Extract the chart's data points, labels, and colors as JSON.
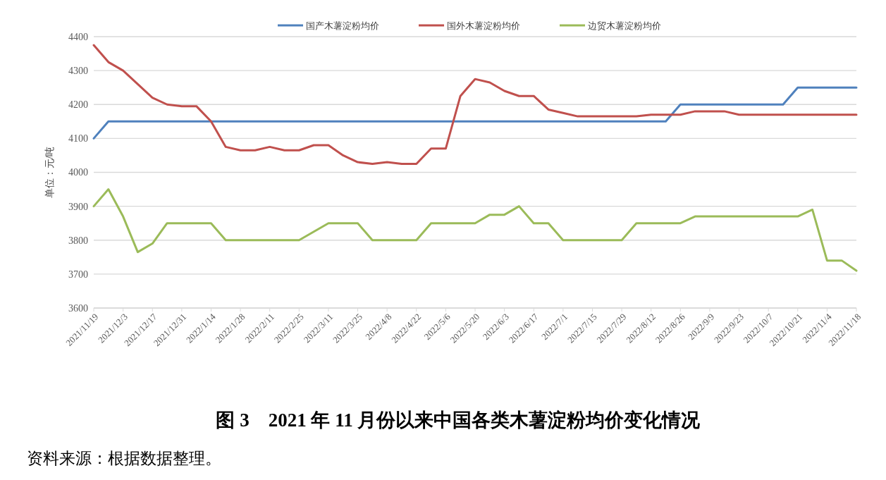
{
  "chart_data": {
    "type": "line",
    "title": "图 3　2021 年 11 月份以来中国各类木薯淀粉均价变化情况",
    "ylabel": "单位：元/吨",
    "categories": [
      "2021/11/19",
      null,
      "2021/12/3",
      null,
      "2021/12/17",
      null,
      "2021/12/31",
      null,
      "2022/1/14",
      null,
      "2022/1/28",
      null,
      "2022/2/11",
      null,
      "2022/2/25",
      null,
      "2022/3/11",
      null,
      "2022/3/25",
      null,
      "2022/4/8",
      null,
      "2022/4/22",
      null,
      "2022/5/6",
      null,
      "2022/5/20",
      null,
      "2022/6/3",
      null,
      "2022/6/17",
      null,
      "2022/7/1",
      null,
      "2022/7/15",
      null,
      "2022/7/29",
      null,
      "2022/8/12",
      null,
      "2022/8/26",
      null,
      "2022/9/9",
      null,
      "2022/9/23",
      null,
      "2022/10/7",
      null,
      "2022/10/21",
      null,
      "2022/11/4",
      null,
      "2022/11/18"
    ],
    "series": [
      {
        "name": "国产木薯淀粉均价",
        "color": "#4f81bd",
        "values": [
          4100,
          4150,
          4150,
          4150,
          4150,
          4150,
          4150,
          4150,
          4150,
          4150,
          4150,
          4150,
          4150,
          4150,
          4150,
          4150,
          4150,
          4150,
          4150,
          4150,
          4150,
          4150,
          4150,
          4150,
          4150,
          4150,
          4150,
          4150,
          4150,
          4150,
          4150,
          4150,
          4150,
          4150,
          4150,
          4150,
          4150,
          4150,
          4150,
          4150,
          4200,
          4200,
          4200,
          4200,
          4200,
          4200,
          4200,
          4200,
          4250,
          4250,
          4250,
          4250,
          4250
        ]
      },
      {
        "name": "国外木薯淀粉均价",
        "color": "#c0504d",
        "values": [
          4375,
          4325,
          4300,
          4260,
          4220,
          4200,
          4195,
          4195,
          4150,
          4075,
          4065,
          4065,
          4075,
          4065,
          4065,
          4080,
          4080,
          4050,
          4030,
          4025,
          4030,
          4025,
          4025,
          4070,
          4070,
          4225,
          4275,
          4265,
          4240,
          4225,
          4225,
          4185,
          4175,
          4165,
          4165,
          4165,
          4165,
          4165,
          4170,
          4170,
          4170,
          4180,
          4180,
          4180,
          4170,
          4170,
          4170,
          4170,
          4170,
          4170,
          4170,
          4170,
          4170
        ]
      },
      {
        "name": "边贸木薯淀粉均价",
        "color": "#9bbb59",
        "values": [
          3900,
          3950,
          3870,
          3765,
          3790,
          3850,
          3850,
          3850,
          3850,
          3800,
          3800,
          3800,
          3800,
          3800,
          3800,
          3825,
          3850,
          3850,
          3850,
          3800,
          3800,
          3800,
          3800,
          3850,
          3850,
          3850,
          3850,
          3875,
          3875,
          3900,
          3850,
          3850,
          3800,
          3800,
          3800,
          3800,
          3800,
          3850,
          3850,
          3850,
          3850,
          3870,
          3870,
          3870,
          3870,
          3870,
          3870,
          3870,
          3870,
          3890,
          3740,
          3740,
          3710
        ]
      }
    ],
    "ylim": [
      3600,
      4400
    ],
    "yticks": [
      3600,
      3700,
      3800,
      3900,
      4000,
      4100,
      4200,
      4300,
      4400
    ],
    "grid": "y",
    "legend": "top",
    "marker": "none",
    "line_style": "solid",
    "annotations": [
      "资料来源：根据数据整理。"
    ]
  }
}
